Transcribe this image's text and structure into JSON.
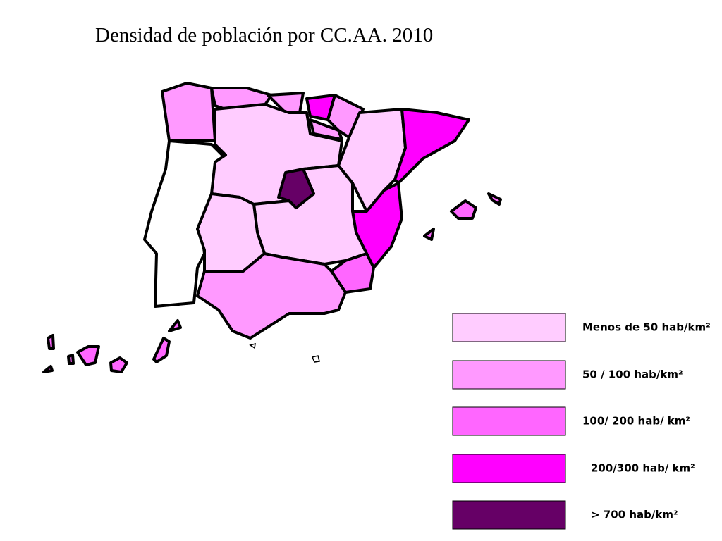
{
  "title": "Densidad de población por CC.AA. 2010",
  "legend": [
    {
      "label": "Menos de 50 hab/km²",
      "color": "#ffccff"
    },
    {
      "label": "50 / 100 hab/km²",
      "color": "#ff99ff"
    },
    {
      "label": "100/ 200 hab/ km²",
      "color": "#ff66ff"
    },
    {
      "label": "200/300 hab/ km²",
      "color": "#ff00ff"
    },
    {
      "label": "> 700 hab/km²",
      "color": "#660066"
    }
  ]
}
